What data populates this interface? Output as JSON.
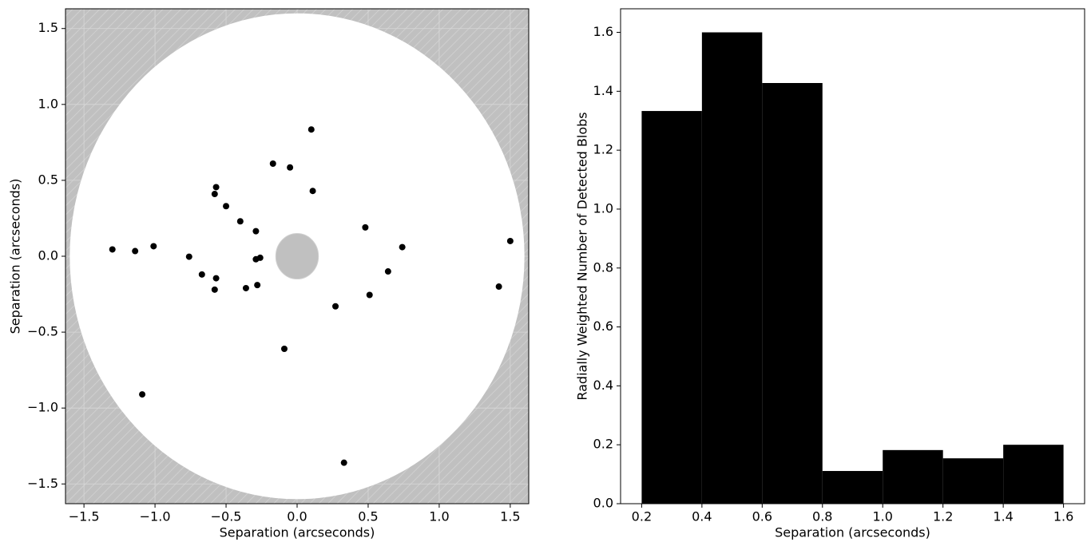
{
  "chart_data": [
    {
      "type": "scatter",
      "xlabel": "Separation (arcseconds)",
      "ylabel": "Separation (arcseconds)",
      "x": [
        -1.3,
        -1.14,
        -1.01,
        -0.76,
        -0.67,
        -0.58,
        -0.57,
        -0.57,
        -0.58,
        -0.5,
        -0.4,
        -0.36,
        -0.29,
        -0.29,
        -0.28,
        -0.26,
        -0.17,
        -0.05,
        0.1,
        0.11,
        -0.09,
        0.27,
        0.48,
        0.51,
        0.64,
        0.74,
        -1.09,
        0.33,
        1.42,
        1.5
      ],
      "y": [
        0.045,
        0.034,
        0.066,
        -0.003,
        -0.12,
        0.41,
        0.455,
        -0.145,
        -0.22,
        0.33,
        0.23,
        -0.21,
        0.165,
        -0.02,
        -0.19,
        -0.01,
        0.61,
        0.585,
        0.835,
        0.43,
        -0.61,
        -0.33,
        0.19,
        -0.255,
        -0.1,
        0.06,
        -0.91,
        -1.36,
        -0.2,
        0.1
      ],
      "color": "#000000",
      "mask": {
        "outer_radius": 1.6,
        "inner_radius": 0.15
      },
      "xlim": [
        -1.63,
        1.63
      ],
      "ylim": [
        -1.63,
        1.63
      ],
      "xticks": [
        {
          "value": -1.5,
          "label": "−1.5"
        },
        {
          "value": -1.0,
          "label": "−1.0"
        },
        {
          "value": -0.5,
          "label": "−0.5"
        },
        {
          "value": 0,
          "label": "0.0"
        },
        0.5,
        {
          "value": 1.0,
          "label": "1.0"
        },
        1.5
      ],
      "yticks": [
        {
          "value": -1.5,
          "label": "−1.5"
        },
        {
          "value": -1.0,
          "label": "−1.0"
        },
        {
          "value": -0.5,
          "label": "−0.5"
        },
        {
          "value": 0,
          "label": "0.0"
        },
        0.5,
        {
          "value": 1.0,
          "label": "1.0"
        },
        1.5
      ],
      "grid": true
    },
    {
      "type": "histogram",
      "xlabel": "Separation (arcseconds)",
      "ylabel": "Radially Weighted Number of Detected Blobs",
      "bins": [
        0.2,
        0.4,
        0.6,
        0.8,
        1.0,
        1.2,
        1.4,
        1.6
      ],
      "values": [
        1.333,
        1.6,
        1.428,
        0.111,
        0.182,
        0.154,
        0.2
      ],
      "color": "#000000",
      "xlim": [
        0.13,
        1.67
      ],
      "ylim": [
        0,
        1.68
      ],
      "xticks": [
        0.2,
        0.4,
        0.6,
        0.8,
        {
          "value": 1.0,
          "label": "1.0"
        },
        1.2,
        1.4,
        1.6
      ],
      "yticks": [
        {
          "value": 0,
          "label": "0.0"
        },
        0.2,
        0.4,
        0.6,
        0.8,
        {
          "value": 1.0,
          "label": "1.0"
        },
        1.2,
        1.4,
        1.6
      ],
      "grid": false
    }
  ]
}
